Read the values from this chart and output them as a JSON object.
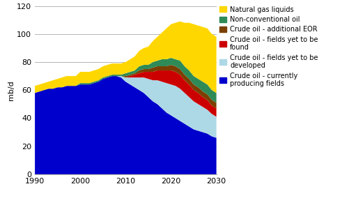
{
  "years": [
    1990,
    1991,
    1992,
    1993,
    1994,
    1995,
    1996,
    1997,
    1998,
    1999,
    2000,
    2001,
    2002,
    2003,
    2004,
    2005,
    2006,
    2007,
    2008,
    2009,
    2010,
    2011,
    2012,
    2013,
    2014,
    2015,
    2016,
    2017,
    2018,
    2019,
    2020,
    2021,
    2022,
    2023,
    2024,
    2025,
    2026,
    2027,
    2028,
    2029,
    2030
  ],
  "currently_producing": [
    58,
    59,
    60,
    61,
    61,
    62,
    62,
    63,
    63,
    63,
    64,
    64,
    64,
    65,
    66,
    68,
    69,
    70,
    70,
    69,
    66,
    64,
    62,
    60,
    58,
    55,
    52,
    50,
    47,
    44,
    42,
    40,
    38,
    36,
    34,
    32,
    31,
    30,
    29,
    27,
    26
  ],
  "yet_to_develop": [
    0,
    0,
    0,
    0,
    0,
    0,
    0,
    0,
    0,
    0,
    0,
    0,
    0,
    0,
    0,
    0,
    0,
    0,
    0,
    1,
    3,
    5,
    7,
    9,
    11,
    13,
    15,
    17,
    19,
    21,
    22,
    23,
    23,
    22,
    21,
    20,
    19,
    18,
    17,
    16,
    15
  ],
  "yet_to_find": [
    0,
    0,
    0,
    0,
    0,
    0,
    0,
    0,
    0,
    0,
    0,
    0,
    0,
    0,
    0,
    0,
    0,
    0,
    0,
    0,
    0,
    1,
    2,
    3,
    4,
    5,
    6,
    7,
    8,
    9,
    10,
    10,
    10,
    9,
    9,
    8,
    8,
    7,
    7,
    6,
    6
  ],
  "additional_eor": [
    0,
    0,
    0,
    0,
    0,
    0,
    0,
    0,
    0,
    0,
    0,
    0,
    0,
    0,
    0,
    0,
    0,
    0,
    0,
    0,
    1,
    1,
    1,
    2,
    2,
    2,
    3,
    3,
    3,
    3,
    4,
    4,
    4,
    4,
    4,
    4,
    4,
    4,
    4,
    4,
    4
  ],
  "non_conventional": [
    0,
    0,
    0,
    0,
    0,
    0,
    0,
    0,
    0,
    0,
    1,
    1,
    1,
    1,
    1,
    1,
    1,
    1,
    1,
    1,
    2,
    2,
    2,
    3,
    3,
    3,
    4,
    4,
    5,
    5,
    5,
    5,
    6,
    6,
    6,
    6,
    6,
    7,
    7,
    7,
    7
  ],
  "natural_gas_liquids": [
    5,
    5,
    5,
    5,
    6,
    6,
    7,
    7,
    7,
    7,
    8,
    8,
    8,
    8,
    8,
    8,
    8,
    8,
    8,
    8,
    8,
    9,
    10,
    11,
    12,
    13,
    15,
    17,
    19,
    22,
    24,
    26,
    28,
    31,
    34,
    37,
    38,
    39,
    40,
    40,
    40
  ],
  "colors": {
    "currently_producing": "#0000cc",
    "yet_to_develop": "#add8e6",
    "yet_to_find": "#cc0000",
    "additional_eor": "#7b3f00",
    "non_conventional": "#2e8b57",
    "natural_gas_liquids": "#ffd700"
  },
  "labels": {
    "currently_producing": "Crude oil - currently\nproducing fields",
    "yet_to_develop": "Crude oil - fields yet to be\ndeveloped",
    "yet_to_find": "Crude oil - fields yet to be\nfound",
    "additional_eor": "Crude oil - additional EOR",
    "non_conventional": "Non-conventional oil",
    "natural_gas_liquids": "Natural gas liquids"
  },
  "ylabel": "mb/d",
  "ylim": [
    0,
    120
  ],
  "xlim": [
    1990,
    2030
  ],
  "yticks": [
    0,
    20,
    40,
    60,
    80,
    100,
    120
  ],
  "xticks": [
    1990,
    2000,
    2010,
    2020,
    2030
  ],
  "background_color": "#ffffff",
  "figsize": [
    5.01,
    2.84
  ],
  "dpi": 100
}
